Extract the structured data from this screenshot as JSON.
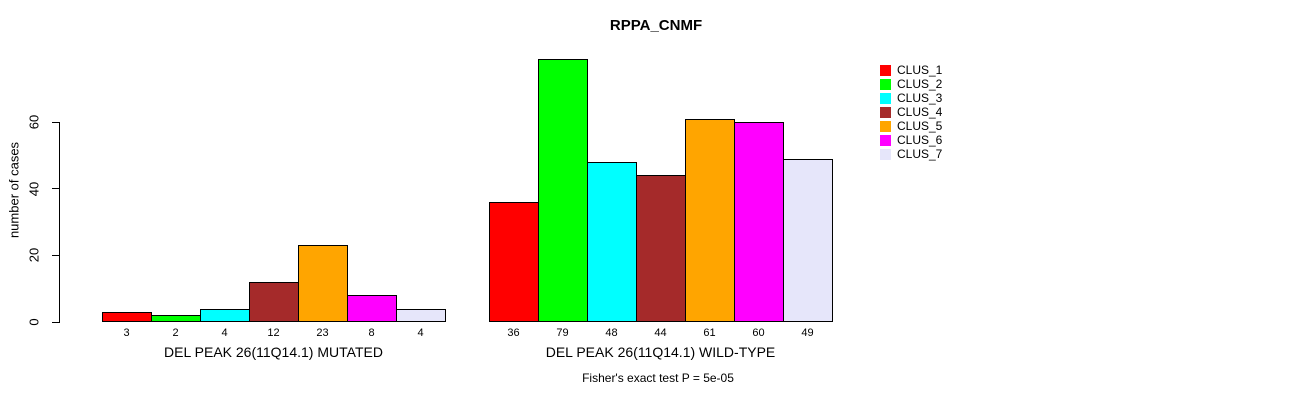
{
  "chart_data": {
    "type": "bar",
    "title": "RPPA_CNMF",
    "ylabel": "number of cases",
    "ylim": [
      0,
      80
    ],
    "yticks": [
      0,
      20,
      40,
      60
    ],
    "grid": false,
    "legend_position": "top-right",
    "categories": [
      "CLUS_1",
      "CLUS_2",
      "CLUS_3",
      "CLUS_4",
      "CLUS_5",
      "CLUS_6",
      "CLUS_7"
    ],
    "series_colors": [
      "#ff0000",
      "#00ff00",
      "#00ffff",
      "#a52a2a",
      "#ffa500",
      "#ff00ff",
      "#e6e6fa"
    ],
    "groups": [
      {
        "label": "DEL PEAK 26(11Q14.1) MUTATED",
        "values": [
          3,
          2,
          4,
          12,
          23,
          8,
          4
        ]
      },
      {
        "label": "DEL PEAK 26(11Q14.1) WILD-TYPE",
        "values": [
          36,
          79,
          48,
          44,
          61,
          60,
          49
        ]
      }
    ],
    "annotation": "Fisher's exact test P = 5e-05"
  }
}
